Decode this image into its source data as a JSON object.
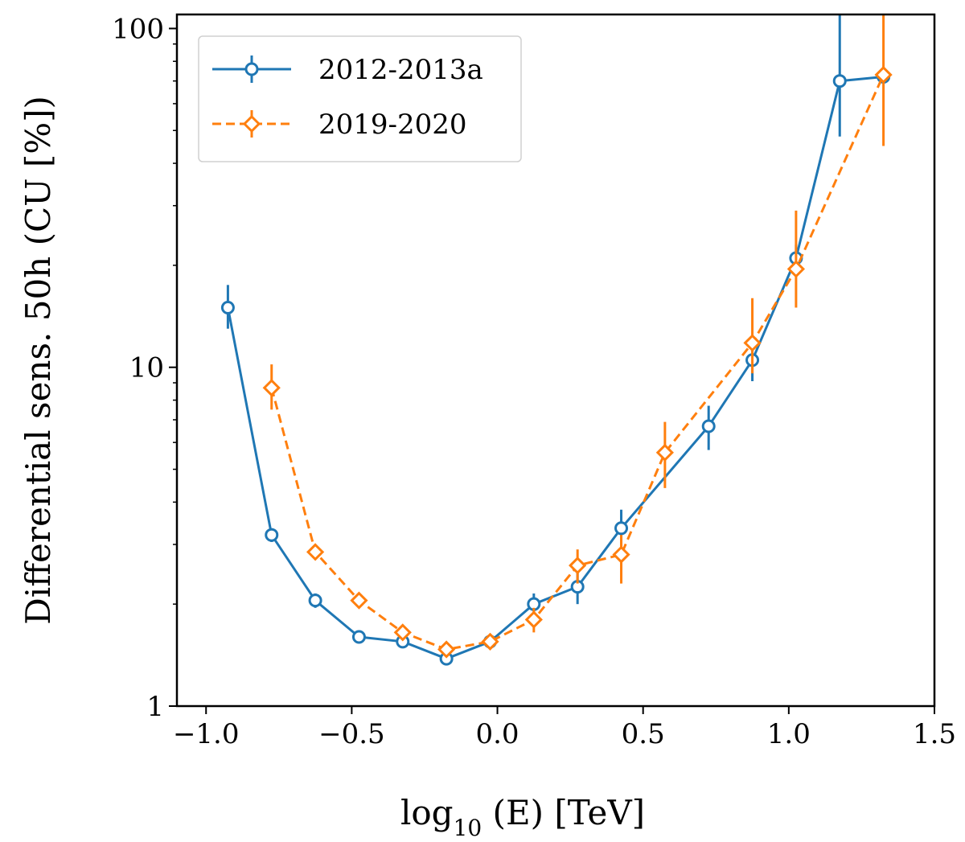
{
  "chart_data": {
    "type": "line",
    "title": "",
    "xlabel_main": "log",
    "xlabel_sub": "10",
    "xlabel_rest": " (E) [TeV]",
    "ylabel": "Differential sens. 50h (CU [%])",
    "xlim": [
      -1.1,
      1.5
    ],
    "ylim": [
      1,
      110
    ],
    "yscale": "log",
    "xticks": [
      -1.0,
      -0.5,
      0.0,
      0.5,
      1.0,
      1.5
    ],
    "xtick_labels": [
      "−1.0",
      "−0.5",
      "0.0",
      "0.5",
      "1.0",
      "1.5"
    ],
    "yticks": [
      1,
      10,
      100
    ],
    "ytick_labels": [
      "1",
      "10",
      "100"
    ],
    "legend_position": "top-left",
    "series": [
      {
        "name": "2012-2013a",
        "color": "#1f77b4",
        "linestyle": "solid",
        "marker": "circle",
        "x": [
          -0.925,
          -0.775,
          -0.625,
          -0.475,
          -0.325,
          -0.175,
          -0.025,
          0.125,
          0.275,
          0.425,
          0.725,
          0.875,
          1.025,
          1.175,
          1.325
        ],
        "y": [
          15.0,
          3.2,
          2.05,
          1.6,
          1.55,
          1.38,
          1.55,
          2.0,
          2.25,
          3.35,
          6.7,
          10.5,
          21.0,
          70.0,
          72.0
        ],
        "err_low": [
          13.0,
          3.05,
          1.95,
          1.55,
          1.5,
          1.33,
          1.5,
          1.9,
          2.0,
          3.0,
          5.7,
          9.1,
          19.0,
          48.0,
          70.0
        ],
        "err_high": [
          17.5,
          3.35,
          2.15,
          1.65,
          1.6,
          1.43,
          1.6,
          2.15,
          2.5,
          3.8,
          7.7,
          12.0,
          23.0,
          110.0,
          75.0
        ]
      },
      {
        "name": "2019-2020",
        "color": "#ff7f0e",
        "linestyle": "dashed",
        "marker": "diamond",
        "x": [
          -0.775,
          -0.625,
          -0.475,
          -0.325,
          -0.175,
          -0.025,
          0.125,
          0.275,
          0.425,
          0.575,
          0.875,
          1.025,
          1.325
        ],
        "y": [
          8.7,
          2.85,
          2.05,
          1.65,
          1.47,
          1.55,
          1.8,
          2.6,
          2.8,
          5.6,
          11.8,
          19.5,
          73.0
        ],
        "err_low": [
          7.5,
          2.75,
          1.95,
          1.6,
          1.42,
          1.5,
          1.65,
          2.3,
          2.3,
          4.4,
          9.6,
          15.0,
          45.0
        ],
        "err_high": [
          10.2,
          2.95,
          2.15,
          1.7,
          1.52,
          1.6,
          1.95,
          2.9,
          3.2,
          6.9,
          16.0,
          29.0,
          110.0
        ]
      }
    ]
  }
}
